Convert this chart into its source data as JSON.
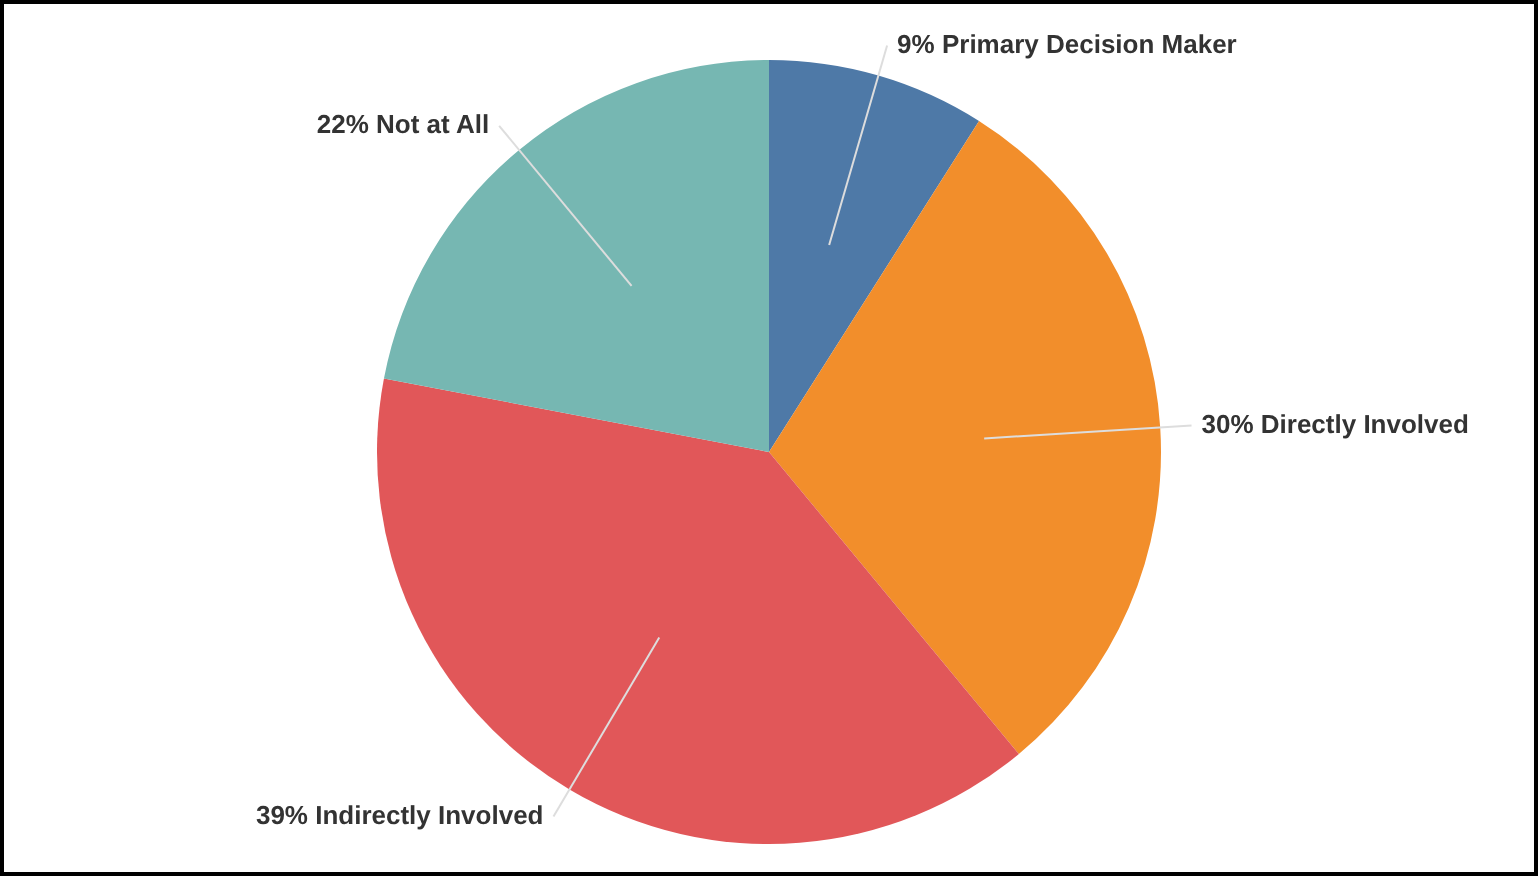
{
  "chart_data": {
    "type": "pie",
    "categories": [
      "9% Primary Decision Maker",
      "30% Directly Involved",
      "39% Indirectly Involved",
      "22% Not at All"
    ],
    "values": [
      9,
      30,
      39,
      22
    ],
    "colors": [
      "#4e79a7",
      "#f28e2b",
      "#e15759",
      "#76b7b2"
    ],
    "legend": false
  }
}
